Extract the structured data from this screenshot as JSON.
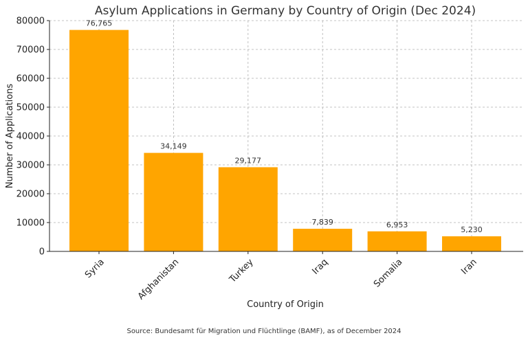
{
  "chart_data": {
    "type": "bar",
    "title": "Asylum Applications in Germany by Country of Origin (Dec 2024)",
    "xlabel": "Country of Origin",
    "ylabel": "Number of Applications",
    "categories": [
      "Syria",
      "Afghanistan",
      "Turkey",
      "Iraq",
      "Somalia",
      "Iran"
    ],
    "values": [
      76765,
      34149,
      29177,
      7839,
      6953,
      5230
    ],
    "value_labels": [
      "76,765",
      "34,149",
      "29,177",
      "7,839",
      "6,953",
      "5,230"
    ],
    "ylim": [
      0,
      80000
    ],
    "yticks": [
      0,
      10000,
      20000,
      30000,
      40000,
      50000,
      60000,
      70000,
      80000
    ],
    "ytick_labels": [
      "0",
      "10000",
      "20000",
      "30000",
      "40000",
      "50000",
      "60000",
      "70000",
      "80000"
    ],
    "grid": true,
    "bar_color": "#FFA500",
    "source": "Source: Bundesamt für Migration und Flüchtlinge (BAMF), as of December 2024"
  }
}
